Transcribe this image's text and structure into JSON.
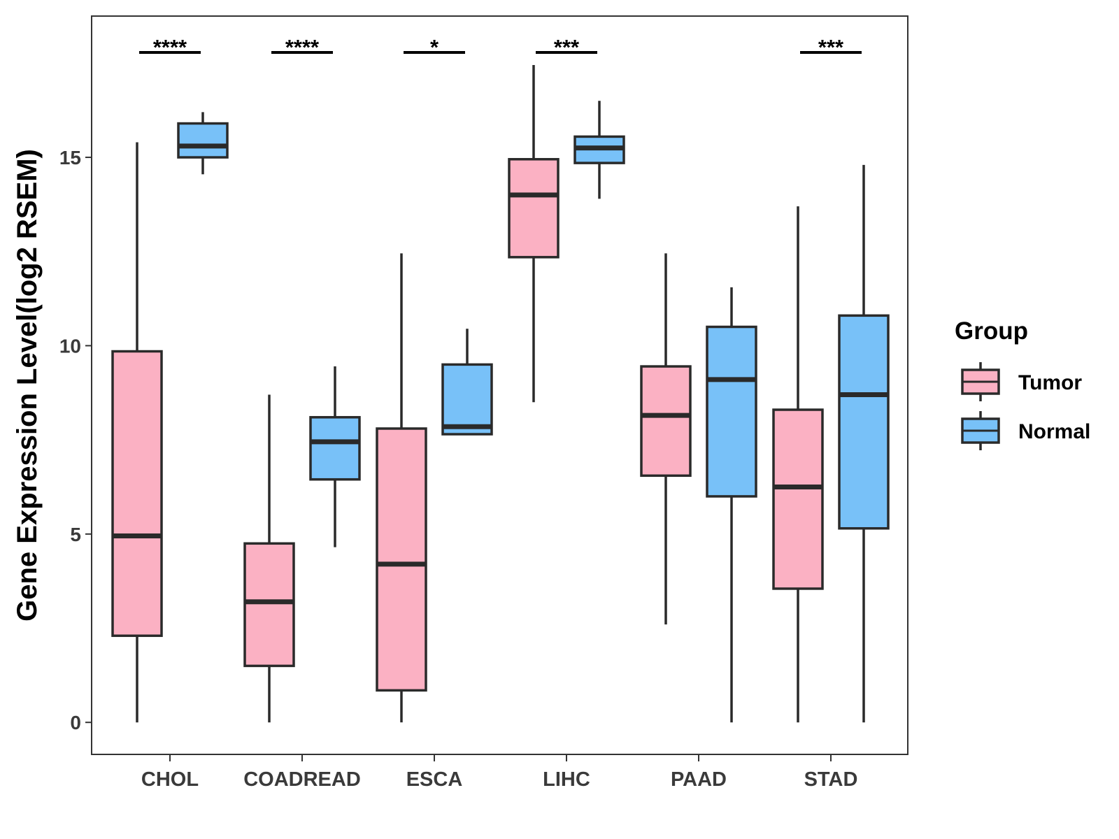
{
  "chart_data": {
    "type": "boxplot",
    "title": "",
    "xlabel": "",
    "ylabel": "Gene Expression Level(log2 RSEM)",
    "ylim": [
      -0.85,
      18.75
    ],
    "yticks": [
      0,
      5,
      10,
      15
    ],
    "categories": [
      "CHOL",
      "COADREAD",
      "ESCA",
      "LIHC",
      "PAAD",
      "STAD"
    ],
    "legend": {
      "title": "Group",
      "position": "right",
      "entries": [
        "Tumor",
        "Normal"
      ]
    },
    "series": [
      {
        "name": "Tumor",
        "color": "#FBB1C3",
        "boxes": [
          {
            "category": "CHOL",
            "lower_whisker": 0,
            "q1": 2.3,
            "median": 4.95,
            "q3": 9.85,
            "upper_whisker": 15.4
          },
          {
            "category": "COADREAD",
            "lower_whisker": 0,
            "q1": 1.5,
            "median": 3.2,
            "q3": 4.75,
            "upper_whisker": 8.7
          },
          {
            "category": "ESCA",
            "lower_whisker": 0,
            "q1": 0.85,
            "median": 4.2,
            "q3": 7.8,
            "upper_whisker": 12.45
          },
          {
            "category": "LIHC",
            "lower_whisker": 8.5,
            "q1": 12.35,
            "median": 14.0,
            "q3": 14.95,
            "upper_whisker": 17.45
          },
          {
            "category": "PAAD",
            "lower_whisker": 2.6,
            "q1": 6.55,
            "median": 8.15,
            "q3": 9.45,
            "upper_whisker": 12.45
          },
          {
            "category": "STAD",
            "lower_whisker": 0,
            "q1": 3.55,
            "median": 6.25,
            "q3": 8.3,
            "upper_whisker": 13.7
          }
        ]
      },
      {
        "name": "Normal",
        "color": "#78C1F8",
        "boxes": [
          {
            "category": "CHOL",
            "lower_whisker": 14.55,
            "q1": 15.0,
            "median": 15.3,
            "q3": 15.9,
            "upper_whisker": 16.2
          },
          {
            "category": "COADREAD",
            "lower_whisker": 4.65,
            "q1": 6.45,
            "median": 7.45,
            "q3": 8.1,
            "upper_whisker": 9.45
          },
          {
            "category": "ESCA",
            "lower_whisker": 7.65,
            "q1": 7.65,
            "median": 7.85,
            "q3": 9.5,
            "upper_whisker": 10.45
          },
          {
            "category": "LIHC",
            "lower_whisker": 13.9,
            "q1": 14.85,
            "median": 15.25,
            "q3": 15.55,
            "upper_whisker": 16.5
          },
          {
            "category": "PAAD",
            "lower_whisker": 0,
            "q1": 6.0,
            "median": 9.1,
            "q3": 10.5,
            "upper_whisker": 11.55
          },
          {
            "category": "STAD",
            "lower_whisker": 0,
            "q1": 5.15,
            "median": 8.7,
            "q3": 10.8,
            "upper_whisker": 14.8
          }
        ]
      }
    ],
    "significance": [
      {
        "category": "CHOL",
        "label": "****"
      },
      {
        "category": "COADREAD",
        "label": "****"
      },
      {
        "category": "ESCA",
        "label": "*"
      },
      {
        "category": "LIHC",
        "label": "***"
      },
      {
        "category": "PAAD",
        "label": ""
      },
      {
        "category": "STAD",
        "label": "***"
      }
    ]
  }
}
